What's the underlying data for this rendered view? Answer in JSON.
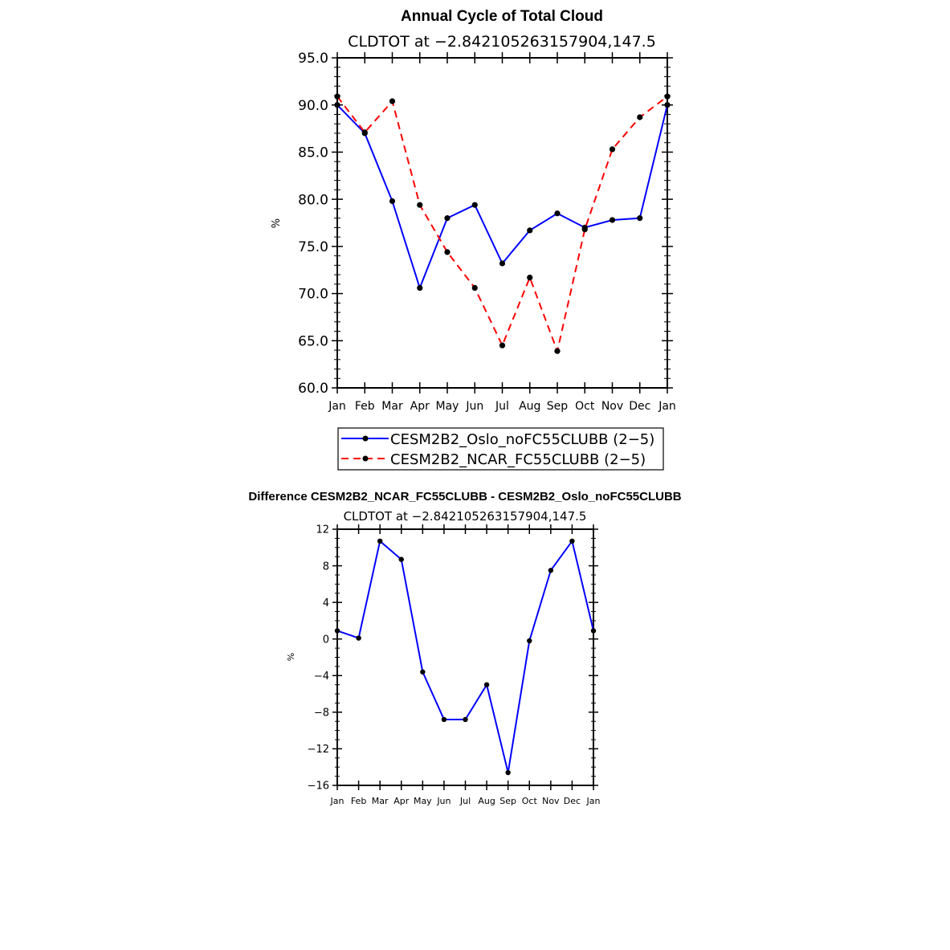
{
  "chart_data": [
    {
      "type": "line",
      "title": "Annual Cycle of Total Cloud",
      "subtitle": "CLDTOT at −2.842105263157904,147.5",
      "ylabel": "%",
      "xlabel": "",
      "ylim": [
        60,
        95
      ],
      "yticks": [
        "60.0",
        "65.0",
        "70.0",
        "75.0",
        "80.0",
        "85.0",
        "90.0",
        "95.0"
      ],
      "categories": [
        "Jan",
        "Feb",
        "Mar",
        "Apr",
        "May",
        "Jun",
        "Jul",
        "Aug",
        "Sep",
        "Oct",
        "Nov",
        "Dec",
        "Jan"
      ],
      "series": [
        {
          "name": "CESM2B2_Oslo_noFC55CLUBB (2−5)",
          "color": "#0000ff",
          "dash": "solid",
          "values": [
            90.0,
            87.0,
            79.8,
            70.6,
            78.0,
            79.4,
            73.2,
            76.7,
            78.5,
            77.0,
            77.8,
            78.0,
            90.0
          ]
        },
        {
          "name": "CESM2B2_NCAR_FC55CLUBB (2−5)",
          "color": "#ff0000",
          "dash": "dashed",
          "values": [
            90.9,
            87.1,
            90.4,
            79.4,
            74.4,
            70.6,
            64.5,
            71.7,
            63.9,
            76.8,
            85.3,
            88.7,
            90.9
          ]
        }
      ],
      "legend": "below"
    },
    {
      "type": "line",
      "title": "Difference CESM2B2_NCAR_FC55CLUBB - CESM2B2_Oslo_noFC55CLUBB",
      "subtitle": "CLDTOT at −2.842105263157904,147.5",
      "ylabel": "%",
      "xlabel": "",
      "ylim": [
        -16,
        12
      ],
      "yticks": [
        "−16",
        "−12",
        "−8",
        "−4",
        "0",
        "4",
        "8",
        "12"
      ],
      "categories": [
        "Jan",
        "Feb",
        "Mar",
        "Apr",
        "May",
        "Jun",
        "Jul",
        "Aug",
        "Sep",
        "Oct",
        "Nov",
        "Dec",
        "Jan"
      ],
      "series": [
        {
          "name": "Difference",
          "color": "#0000ff",
          "dash": "solid",
          "values": [
            0.9,
            0.1,
            10.7,
            8.7,
            -3.6,
            -8.8,
            -8.8,
            -5.0,
            -14.6,
            -0.2,
            7.5,
            10.7,
            0.9
          ]
        }
      ]
    }
  ]
}
